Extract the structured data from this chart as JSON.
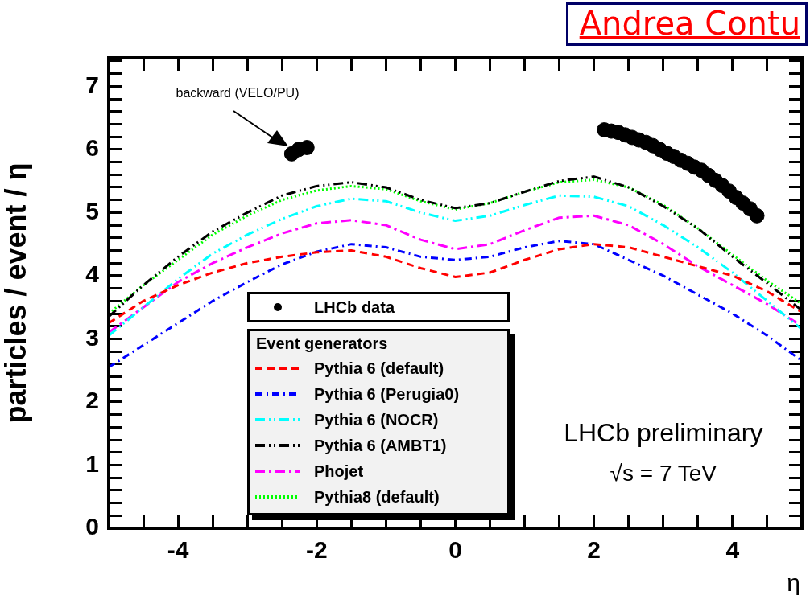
{
  "chart_data": {
    "type": "line",
    "ylabel": "particles / event / η",
    "xlabel": "η",
    "legend_title": "Event generators",
    "legend": "bottom left",
    "grid": false,
    "annotations": [
      "backward (VELO/PU)",
      "LHCb preliminary",
      "√s = 7 TeV",
      "Andrea Contu"
    ],
    "xlim": [
      -5,
      5
    ],
    "ylim": [
      0,
      7.45
    ],
    "xticks": [
      {
        "value": -5,
        "label": null
      },
      {
        "value": -4.5,
        "label": null
      },
      -4,
      {
        "value": -3.5,
        "label": null
      },
      {
        "value": -3,
        "label": null
      },
      {
        "value": -2.5,
        "label": null
      },
      -2,
      {
        "value": -1.5,
        "label": null
      },
      {
        "value": -1,
        "label": null
      },
      {
        "value": -0.5,
        "label": null
      },
      0,
      {
        "value": 0.5,
        "label": null
      },
      {
        "value": 1,
        "label": null
      },
      {
        "value": 1.5,
        "label": null
      },
      2,
      {
        "value": 2.5,
        "label": null
      },
      {
        "value": 3,
        "label": null
      },
      {
        "value": 3.5,
        "label": null
      },
      4,
      {
        "value": 4.5,
        "label": null
      },
      {
        "value": 5,
        "label": null
      }
    ],
    "yticks": [
      0,
      {
        "value": 0.2,
        "label": null
      },
      {
        "value": 0.4,
        "label": null
      },
      {
        "value": 0.6,
        "label": null
      },
      {
        "value": 0.8,
        "label": null
      },
      1,
      {
        "value": 1.2,
        "label": null
      },
      {
        "value": 1.4,
        "label": null
      },
      {
        "value": 1.6,
        "label": null
      },
      {
        "value": 1.8,
        "label": null
      },
      2,
      {
        "value": 2.2,
        "label": null
      },
      {
        "value": 2.4,
        "label": null
      },
      {
        "value": 2.6,
        "label": null
      },
      {
        "value": 2.8,
        "label": null
      },
      3,
      {
        "value": 3.2,
        "label": null
      },
      {
        "value": 3.4,
        "label": null
      },
      {
        "value": 3.6,
        "label": null
      },
      {
        "value": 3.8,
        "label": null
      },
      4,
      {
        "value": 4.2,
        "label": null
      },
      {
        "value": 4.4,
        "label": null
      },
      {
        "value": 4.6,
        "label": null
      },
      {
        "value": 4.8,
        "label": null
      },
      5,
      {
        "value": 5.2,
        "label": null
      },
      {
        "value": 5.4,
        "label": null
      },
      {
        "value": 5.6,
        "label": null
      },
      {
        "value": 5.8,
        "label": null
      },
      6,
      {
        "value": 6.2,
        "label": null
      },
      {
        "value": 6.4,
        "label": null
      },
      {
        "value": 6.6,
        "label": null
      },
      {
        "value": 6.8,
        "label": null
      },
      7,
      {
        "value": 7.2,
        "label": null
      },
      {
        "value": 7.4,
        "label": null
      }
    ],
    "x": [
      -5,
      -4.5,
      -4,
      -3.5,
      -3,
      -2.5,
      -2,
      -1.5,
      -1,
      -0.5,
      0,
      0.5,
      1,
      1.5,
      2,
      2.5,
      3,
      3.5,
      4,
      4.5,
      5
    ],
    "series": [
      {
        "name": "LHCb data",
        "type": "scatter",
        "marker": "circle",
        "color": "#000000",
        "x": [
          -2.36,
          -2.26,
          -2.14,
          2.15,
          2.25,
          2.35,
          2.45,
          2.55,
          2.65,
          2.75,
          2.85,
          2.95,
          3.05,
          3.15,
          3.25,
          3.35,
          3.45,
          3.55,
          3.65,
          3.75,
          3.85,
          3.95,
          4.05,
          4.15,
          4.25,
          4.35
        ],
        "values": [
          5.93,
          6.0,
          6.03,
          6.31,
          6.29,
          6.27,
          6.23,
          6.19,
          6.15,
          6.11,
          6.06,
          6.0,
          5.94,
          5.89,
          5.83,
          5.78,
          5.72,
          5.67,
          5.59,
          5.51,
          5.43,
          5.34,
          5.24,
          5.15,
          5.06,
          4.95
        ]
      },
      {
        "name": "Pythia 6 (default)",
        "type": "line",
        "line_style": "dashed",
        "color": "#ff0000",
        "values": [
          3.25,
          3.6,
          3.85,
          4.05,
          4.2,
          4.3,
          4.37,
          4.4,
          4.3,
          4.12,
          3.98,
          4.05,
          4.25,
          4.42,
          4.5,
          4.45,
          4.3,
          4.15,
          4.0,
          3.75,
          3.42
        ]
      },
      {
        "name": "Pythia 6 (Perugia0)",
        "type": "line",
        "line_style": "dashed",
        "color": "#0000ff",
        "values": [
          2.55,
          2.9,
          3.25,
          3.6,
          3.9,
          4.18,
          4.38,
          4.5,
          4.45,
          4.3,
          4.25,
          4.3,
          4.45,
          4.55,
          4.5,
          4.25,
          4.0,
          3.7,
          3.4,
          3.05,
          2.65
        ]
      },
      {
        "name": "Pythia 6 (NOCR)",
        "type": "line",
        "line_style": "dashed",
        "color": "#00ffff",
        "values": [
          3.05,
          3.5,
          3.95,
          4.35,
          4.65,
          4.9,
          5.1,
          5.22,
          5.18,
          5.0,
          4.87,
          4.95,
          5.12,
          5.27,
          5.25,
          5.1,
          4.8,
          4.45,
          4.05,
          3.6,
          3.15
        ]
      },
      {
        "name": "Pythia 6 (AMBT1)",
        "type": "line",
        "line_style": "dashed",
        "color": "#000000",
        "values": [
          3.35,
          3.85,
          4.3,
          4.7,
          5.0,
          5.27,
          5.42,
          5.48,
          5.4,
          5.2,
          5.07,
          5.15,
          5.33,
          5.5,
          5.57,
          5.4,
          5.1,
          4.75,
          4.3,
          3.88,
          3.45
        ]
      },
      {
        "name": "Phojet",
        "type": "line",
        "line_style": "dashed",
        "color": "#ff00ff",
        "values": [
          3.1,
          3.5,
          3.9,
          4.2,
          4.45,
          4.67,
          4.83,
          4.88,
          4.8,
          4.57,
          4.42,
          4.5,
          4.72,
          4.92,
          4.95,
          4.8,
          4.5,
          4.15,
          3.85,
          3.55,
          3.2
        ]
      },
      {
        "name": "Pythia8 (default)",
        "type": "line",
        "line_style": "dotted",
        "color": "#00ff00",
        "values": [
          3.4,
          3.85,
          4.25,
          4.65,
          4.95,
          5.2,
          5.35,
          5.42,
          5.37,
          5.18,
          5.05,
          5.15,
          5.33,
          5.48,
          5.52,
          5.4,
          5.12,
          4.75,
          4.33,
          3.92,
          3.55
        ]
      }
    ]
  }
}
